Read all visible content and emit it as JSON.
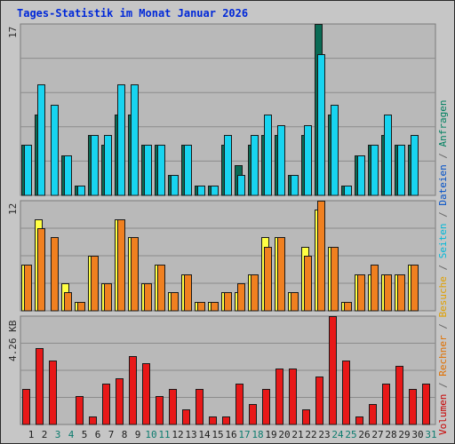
{
  "title": "Tages-Statistik im Monat Januar 2026",
  "chart_data": {
    "type": "bar",
    "days": [
      "1",
      "2",
      "3",
      "4",
      "5",
      "6",
      "7",
      "8",
      "9",
      "10",
      "11",
      "12",
      "13",
      "14",
      "15",
      "16",
      "17",
      "18",
      "19",
      "20",
      "21",
      "22",
      "23",
      "24",
      "25",
      "26",
      "27",
      "28",
      "29",
      "30",
      "31"
    ],
    "weekend_days": [
      "3",
      "4",
      "10",
      "11",
      "17",
      "18",
      "24",
      "25",
      "31"
    ],
    "panels": [
      {
        "max_label": "17",
        "ylim": [
          0,
          17
        ],
        "series": [
          {
            "name": "Anfragen",
            "color": "#0a6b55",
            "values": [
              5,
              8,
              0,
              4,
              1,
              6,
              5,
              8,
              8,
              5,
              5,
              2,
              5,
              1,
              1,
              5,
              3,
              5,
              6,
              6,
              2,
              6,
              17,
              8,
              1,
              4,
              5,
              6,
              5,
              5,
              0
            ]
          },
          {
            "name": "Dateien",
            "color": "#18d4f0",
            "values": [
              5,
              11,
              9,
              4,
              1,
              6,
              6,
              11,
              11,
              5,
              5,
              2,
              5,
              1,
              1,
              6,
              2,
              6,
              8,
              7,
              2,
              7,
              14,
              9,
              1,
              4,
              5,
              8,
              5,
              6,
              0
            ]
          }
        ]
      },
      {
        "max_label": "12",
        "ylim": [
          0,
          12
        ],
        "series": [
          {
            "name": "Seiten",
            "color": "#ffff44",
            "values": [
              5,
              10,
              0,
              3,
              1,
              6,
              3,
              10,
              8,
              3,
              5,
              2,
              4,
              1,
              1,
              2,
              2,
              4,
              8,
              8,
              2,
              7,
              11,
              7,
              1,
              4,
              4,
              4,
              4,
              5,
              0
            ]
          },
          {
            "name": "Besuche",
            "color": "#f08020",
            "values": [
              5,
              9,
              8,
              2,
              1,
              6,
              3,
              10,
              8,
              3,
              5,
              2,
              4,
              1,
              1,
              2,
              3,
              4,
              7,
              8,
              2,
              6,
              12,
              7,
              1,
              4,
              5,
              4,
              4,
              5,
              0
            ]
          }
        ]
      },
      {
        "max_label": "4.26 KB",
        "ylim": [
          0,
          4.26
        ],
        "series": [
          {
            "name": "Volumen",
            "color": "#e81818",
            "values": [
              1.4,
              3.0,
              2.5,
              0,
              1.1,
              0.3,
              1.6,
              1.8,
              2.7,
              2.4,
              1.1,
              1.4,
              0.6,
              1.4,
              0.3,
              0.3,
              1.6,
              0.8,
              1.4,
              2.2,
              2.2,
              0.6,
              1.9,
              4.26,
              2.5,
              0.3,
              0.8,
              1.6,
              2.3,
              1.4,
              1.6
            ]
          }
        ]
      }
    ]
  },
  "legend": [
    {
      "text": "Volumen",
      "color": "#c80000"
    },
    {
      "text": " / ",
      "color": "#666666"
    },
    {
      "text": "Rechner",
      "color": "#e07000"
    },
    {
      "text": " / ",
      "color": "#666666"
    },
    {
      "text": "Besuche",
      "color": "#e0a000"
    },
    {
      "text": " / ",
      "color": "#666666"
    },
    {
      "text": "Seiten",
      "color": "#00b8d8"
    },
    {
      "text": " / ",
      "color": "#666666"
    },
    {
      "text": "Dateien",
      "color": "#0050c8"
    },
    {
      "text": " / ",
      "color": "#666666"
    },
    {
      "text": "Anfragen",
      "color": "#008060"
    }
  ]
}
